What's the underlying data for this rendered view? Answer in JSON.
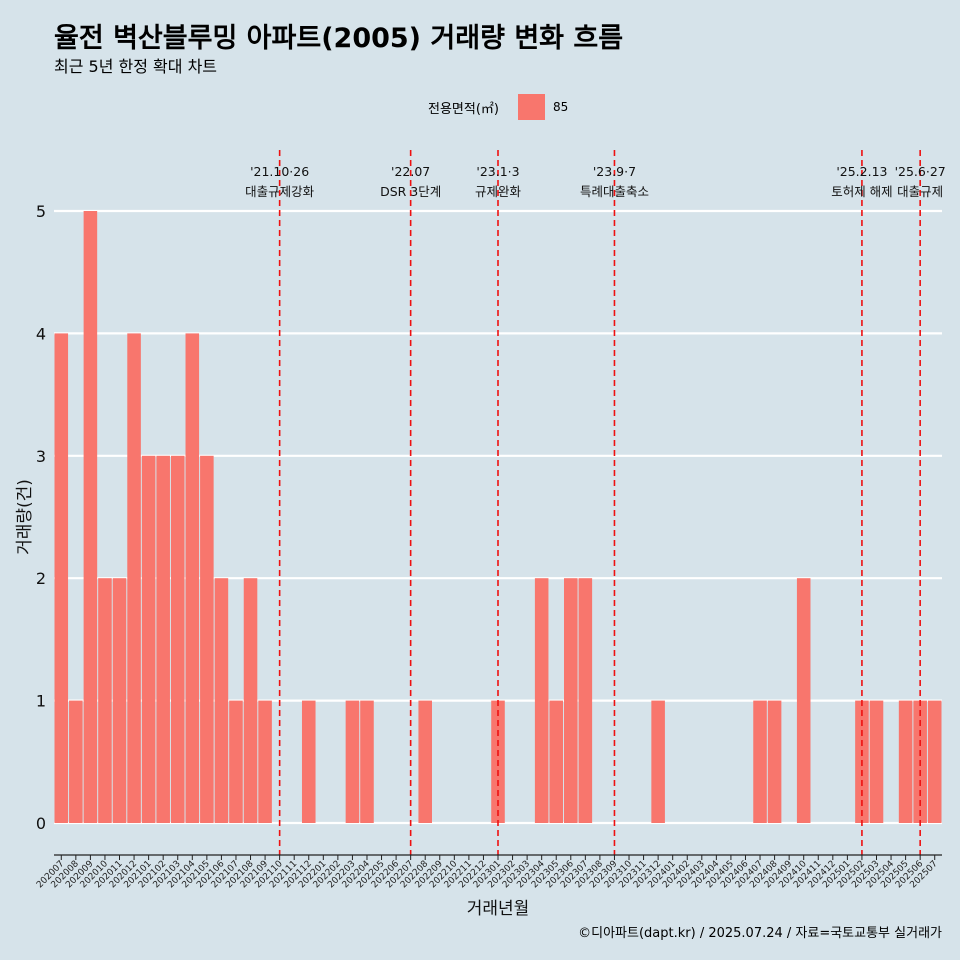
{
  "title": "율전 벽산블루밍 아파트(2005) 거래량 변화 흐름",
  "subtitle": "최근 5년 한정 확대 차트",
  "caption": "©디아파트(dapt.kr) / 2025.07.24 / 자료=국토교통부 실거래가",
  "legend": {
    "title": "전용면적(㎡)",
    "label": "85"
  },
  "colors": {
    "bar": "#f8766d",
    "vline": "#ee1111",
    "grid": "#ffffff",
    "background": "#d6e3ea"
  },
  "chart_data": {
    "type": "bar",
    "xlabel": "거래년월",
    "ylabel": "거래량(건)",
    "ylim": [
      0,
      5
    ],
    "y_ticks": [
      0,
      1,
      2,
      3,
      4,
      5
    ],
    "grid": true,
    "legend_position": "top",
    "categories": [
      "202007",
      "202008",
      "202009",
      "202010",
      "202011",
      "202012",
      "202101",
      "202102",
      "202103",
      "202104",
      "202105",
      "202106",
      "202107",
      "202108",
      "202109",
      "202110",
      "202111",
      "202112",
      "202201",
      "202202",
      "202203",
      "202204",
      "202205",
      "202206",
      "202207",
      "202208",
      "202209",
      "202210",
      "202211",
      "202212",
      "202301",
      "202302",
      "202303",
      "202304",
      "202305",
      "202306",
      "202307",
      "202308",
      "202309",
      "202310",
      "202311",
      "202312",
      "202401",
      "202402",
      "202403",
      "202404",
      "202405",
      "202406",
      "202407",
      "202408",
      "202409",
      "202410",
      "202411",
      "202412",
      "202501",
      "202502",
      "202503",
      "202504",
      "202505",
      "202506",
      "202507"
    ],
    "series": [
      {
        "name": "85",
        "values": [
          4,
          1,
          5,
          2,
          2,
          4,
          3,
          3,
          3,
          4,
          3,
          2,
          1,
          2,
          1,
          0,
          0,
          1,
          0,
          0,
          1,
          1,
          0,
          0,
          0,
          1,
          0,
          0,
          0,
          0,
          1,
          0,
          0,
          2,
          1,
          2,
          2,
          0,
          0,
          0,
          0,
          1,
          0,
          0,
          0,
          0,
          0,
          0,
          1,
          1,
          0,
          2,
          0,
          0,
          0,
          1,
          1,
          0,
          1,
          1,
          1
        ]
      }
    ],
    "annotations": [
      {
        "x": "202110",
        "date": "'21.10·26",
        "label": "대출규제강화"
      },
      {
        "x": "202207",
        "date": "'22.07",
        "label": "DSR 3단계"
      },
      {
        "x": "202301",
        "date": "'23.1·3",
        "label": "규제완화"
      },
      {
        "x": "202309",
        "date": "'23.9·7",
        "label": "특례대출축소"
      },
      {
        "x": "202502",
        "date": "'25.2.13",
        "label": "토허제 해제"
      },
      {
        "x": "202506",
        "date": "'25.6·27",
        "label": "대출규제"
      }
    ]
  }
}
